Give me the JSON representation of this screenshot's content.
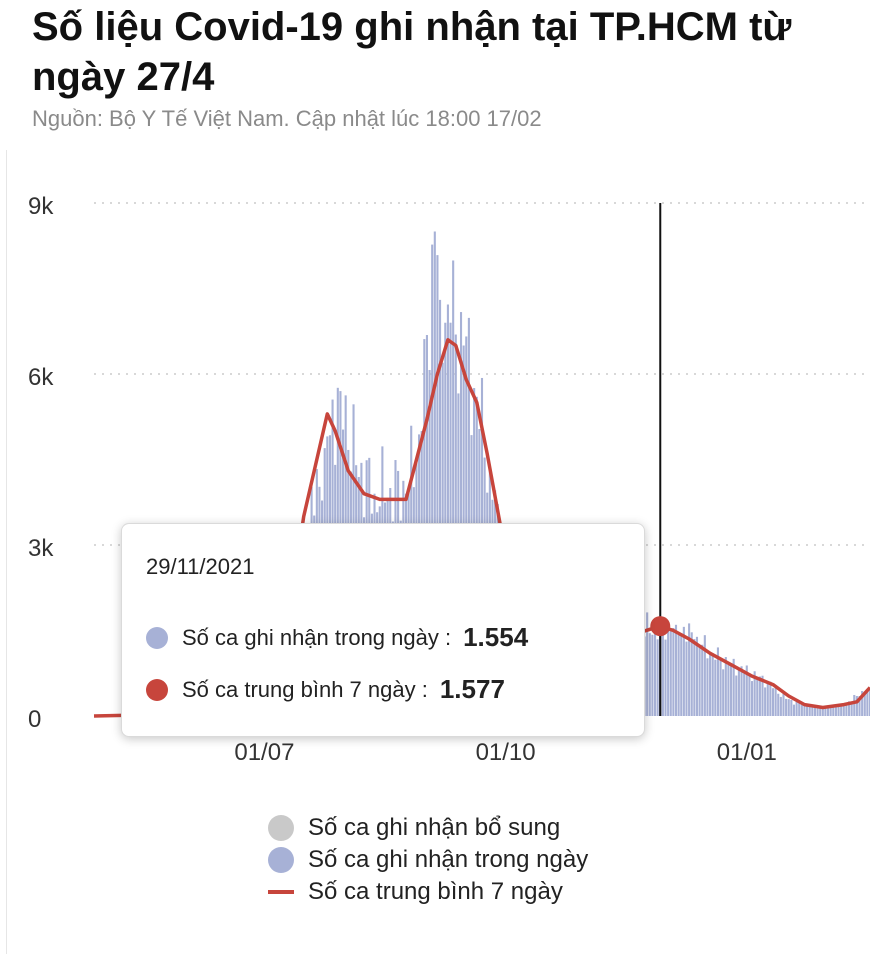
{
  "title": "Số liệu Covid-19 ghi nhận tại TP.HCM từ ngày 27/4",
  "subtitle": "Nguồn: Bộ Y Tế Việt Nam. Cập nhật lúc 18:00 17/02",
  "colors": {
    "bars": "#a7b1d6",
    "bars_highlight": "#2e3d7a",
    "line": "#c7453c",
    "supplement": "#c9c9c9",
    "grid": "#cccccc",
    "cursor": "#111111"
  },
  "tooltip": {
    "date": "29/11/2021",
    "daily_label": "Số ca ghi nhận trong ngày :",
    "daily_value": "1.554",
    "avg_label": "Số ca trung bình 7 ngày :",
    "avg_value": "1.577"
  },
  "legend": [
    {
      "label": "Số ca ghi nhận bổ sung",
      "icon": "gray-circle"
    },
    {
      "label": "Số ca ghi nhận trong ngày",
      "icon": "blue-circle"
    },
    {
      "label": "Số ca trung bình 7 ngày",
      "icon": "red-line"
    }
  ],
  "chart_data": {
    "type": "bar",
    "x_start": "2021-04-27",
    "x_end": "2022-02-17",
    "y_ticks": [
      0,
      3000,
      6000,
      9000
    ],
    "y_tick_labels": [
      "0",
      "3k",
      "6k",
      "9k"
    ],
    "x_ticks": [
      "2021-07-01",
      "2021-10-01",
      "2022-01-01"
    ],
    "x_tick_labels": [
      "01/07",
      "01/10",
      "01/01"
    ],
    "ylim": [
      0,
      9000
    ],
    "grid": true,
    "legend_position": "bottom",
    "highlight_date": "2021-11-29",
    "series": [
      {
        "name": "Số ca ghi nhận trong ngày",
        "kind": "bar",
        "points": [
          [
            "2021-04-27",
            0
          ],
          [
            "2021-05-15",
            5
          ],
          [
            "2021-06-01",
            40
          ],
          [
            "2021-06-15",
            180
          ],
          [
            "2021-07-01",
            600
          ],
          [
            "2021-07-10",
            1900
          ],
          [
            "2021-07-18",
            3300
          ],
          [
            "2021-07-24",
            4700
          ],
          [
            "2021-07-30",
            5700
          ],
          [
            "2021-08-05",
            4400
          ],
          [
            "2021-08-12",
            3900
          ],
          [
            "2021-08-18",
            4000
          ],
          [
            "2021-08-24",
            3900
          ],
          [
            "2021-08-30",
            5000
          ],
          [
            "2021-09-04",
            8500
          ],
          [
            "2021-09-06",
            7300
          ],
          [
            "2021-09-10",
            6900
          ],
          [
            "2021-09-15",
            6500
          ],
          [
            "2021-09-20",
            5600
          ],
          [
            "2021-09-25",
            4300
          ],
          [
            "2021-09-30",
            2800
          ],
          [
            "2021-10-05",
            1700
          ],
          [
            "2021-10-10",
            1300
          ],
          [
            "2021-10-15",
            1150
          ],
          [
            "2021-10-20",
            1100
          ],
          [
            "2021-10-25",
            1100
          ],
          [
            "2021-11-01",
            1150
          ],
          [
            "2021-11-08",
            1250
          ],
          [
            "2021-11-15",
            1350
          ],
          [
            "2021-11-22",
            1500
          ],
          [
            "2021-11-29",
            1554
          ],
          [
            "2021-12-05",
            1600
          ],
          [
            "2021-12-12",
            1350
          ],
          [
            "2021-12-19",
            1100
          ],
          [
            "2021-12-26",
            900
          ],
          [
            "2022-01-02",
            750
          ],
          [
            "2022-01-09",
            600
          ],
          [
            "2022-01-16",
            300
          ],
          [
            "2022-01-23",
            180
          ],
          [
            "2022-01-30",
            150
          ],
          [
            "2022-02-06",
            170
          ],
          [
            "2022-02-12",
            350
          ],
          [
            "2022-02-17",
            500
          ]
        ]
      },
      {
        "name": "Số ca trung bình 7 ngày",
        "kind": "line",
        "points": [
          [
            "2021-04-27",
            0
          ],
          [
            "2021-06-15",
            50
          ],
          [
            "2021-07-01",
            350
          ],
          [
            "2021-07-10",
            1600
          ],
          [
            "2021-07-16",
            3500
          ],
          [
            "2021-07-20",
            4300
          ],
          [
            "2021-07-25",
            5300
          ],
          [
            "2021-07-28",
            5000
          ],
          [
            "2021-08-02",
            4300
          ],
          [
            "2021-08-08",
            3900
          ],
          [
            "2021-08-14",
            3800
          ],
          [
            "2021-08-20",
            3800
          ],
          [
            "2021-08-24",
            3800
          ],
          [
            "2021-08-28",
            4500
          ],
          [
            "2021-09-01",
            5200
          ],
          [
            "2021-09-05",
            6000
          ],
          [
            "2021-09-09",
            6600
          ],
          [
            "2021-09-12",
            6500
          ],
          [
            "2021-09-16",
            5900
          ],
          [
            "2021-09-20",
            5500
          ],
          [
            "2021-09-24",
            4600
          ],
          [
            "2021-09-28",
            3600
          ],
          [
            "2021-10-02",
            2600
          ],
          [
            "2021-10-10",
            1700
          ],
          [
            "2021-10-20",
            1250
          ],
          [
            "2021-10-30",
            1150
          ],
          [
            "2021-11-10",
            1250
          ],
          [
            "2021-11-20",
            1450
          ],
          [
            "2021-11-29",
            1577
          ],
          [
            "2021-12-04",
            1500
          ],
          [
            "2021-12-10",
            1350
          ],
          [
            "2021-12-18",
            1100
          ],
          [
            "2021-12-26",
            900
          ],
          [
            "2022-01-03",
            700
          ],
          [
            "2022-01-11",
            550
          ],
          [
            "2022-01-17",
            350
          ],
          [
            "2022-01-23",
            200
          ],
          [
            "2022-01-30",
            150
          ],
          [
            "2022-02-07",
            200
          ],
          [
            "2022-02-12",
            250
          ],
          [
            "2022-02-17",
            500
          ]
        ]
      }
    ]
  }
}
